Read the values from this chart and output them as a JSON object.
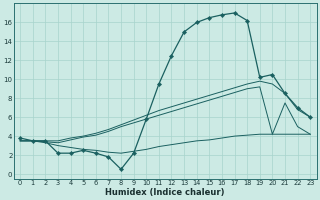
{
  "xlabel": "Humidex (Indice chaleur)",
  "bg_color": "#cceae4",
  "grid_color": "#a8d4cc",
  "line_color": "#1a6060",
  "x_ticks": [
    0,
    1,
    2,
    3,
    4,
    5,
    6,
    7,
    8,
    9,
    10,
    11,
    12,
    13,
    14,
    15,
    16,
    17,
    18,
    19,
    20,
    21,
    22,
    23
  ],
  "y_ticks": [
    0,
    2,
    4,
    6,
    8,
    10,
    12,
    14,
    16
  ],
  "xlim": [
    -0.5,
    23.5
  ],
  "ylim": [
    -0.5,
    18.0
  ],
  "main_y": [
    3.8,
    3.5,
    3.5,
    2.2,
    2.2,
    2.5,
    2.2,
    1.8,
    0.5,
    2.2,
    5.8,
    9.5,
    12.5,
    15.0,
    16.0,
    16.5,
    16.8,
    17.0,
    16.2,
    10.2,
    10.5,
    8.5,
    7.0,
    6.0
  ],
  "line_upper_y": [
    3.5,
    3.5,
    3.5,
    3.5,
    3.8,
    4.0,
    4.3,
    4.7,
    5.2,
    5.7,
    6.2,
    6.7,
    7.1,
    7.5,
    7.9,
    8.3,
    8.7,
    9.1,
    9.5,
    9.8,
    9.5,
    8.5,
    6.8,
    6.0
  ],
  "line_mid_y": [
    3.5,
    3.5,
    3.4,
    3.3,
    3.6,
    3.9,
    4.1,
    4.5,
    5.0,
    5.4,
    5.8,
    6.2,
    6.6,
    7.0,
    7.4,
    7.8,
    8.2,
    8.6,
    9.0,
    9.2,
    4.2,
    7.5,
    5.0,
    4.2
  ],
  "line_lower_y": [
    3.5,
    3.5,
    3.3,
    3.0,
    2.8,
    2.6,
    2.5,
    2.3,
    2.2,
    2.4,
    2.6,
    2.9,
    3.1,
    3.3,
    3.5,
    3.6,
    3.8,
    4.0,
    4.1,
    4.2,
    4.2,
    4.2,
    4.2,
    4.2
  ]
}
